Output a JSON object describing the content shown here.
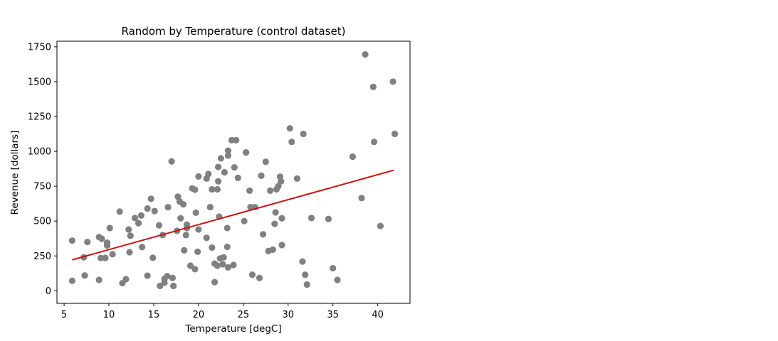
{
  "chart_data": {
    "type": "scatter",
    "title": "Random by Temperature (control dataset)",
    "xlabel": "Temperature [degC]",
    "ylabel": "Revenue [dollars]",
    "xlim": [
      4.2,
      43.6
    ],
    "ylim": [
      -90,
      1790
    ],
    "x_ticks": [
      5,
      10,
      15,
      20,
      25,
      30,
      35,
      40
    ],
    "y_ticks": [
      0,
      250,
      500,
      750,
      1000,
      1250,
      1500,
      1750
    ],
    "grid": false,
    "legend": "none",
    "colors": {
      "points": "#808080",
      "trend": "#cc1111"
    },
    "trend_line": {
      "x": [
        5.9,
        41.8
      ],
      "y": [
        222,
        865
      ]
    },
    "points": [
      {
        "x": 5.9,
        "y": 360
      },
      {
        "x": 5.9,
        "y": 72
      },
      {
        "x": 7.3,
        "y": 110
      },
      {
        "x": 7.2,
        "y": 240
      },
      {
        "x": 7.6,
        "y": 350
      },
      {
        "x": 8.9,
        "y": 385
      },
      {
        "x": 8.9,
        "y": 78
      },
      {
        "x": 9.1,
        "y": 235
      },
      {
        "x": 9.2,
        "y": 373
      },
      {
        "x": 9.6,
        "y": 236
      },
      {
        "x": 9.8,
        "y": 345
      },
      {
        "x": 9.8,
        "y": 325
      },
      {
        "x": 10.1,
        "y": 450
      },
      {
        "x": 10.4,
        "y": 262
      },
      {
        "x": 11.2,
        "y": 568
      },
      {
        "x": 11.5,
        "y": 55
      },
      {
        "x": 11.9,
        "y": 83
      },
      {
        "x": 12.2,
        "y": 440
      },
      {
        "x": 12.3,
        "y": 277
      },
      {
        "x": 12.4,
        "y": 395
      },
      {
        "x": 12.9,
        "y": 522
      },
      {
        "x": 13.3,
        "y": 485
      },
      {
        "x": 13.6,
        "y": 540
      },
      {
        "x": 13.7,
        "y": 313
      },
      {
        "x": 14.3,
        "y": 590
      },
      {
        "x": 14.3,
        "y": 108
      },
      {
        "x": 14.7,
        "y": 660
      },
      {
        "x": 14.9,
        "y": 237
      },
      {
        "x": 15.1,
        "y": 572
      },
      {
        "x": 15.6,
        "y": 470
      },
      {
        "x": 15.7,
        "y": 35
      },
      {
        "x": 16.0,
        "y": 400
      },
      {
        "x": 16.2,
        "y": 85
      },
      {
        "x": 16.2,
        "y": 58
      },
      {
        "x": 16.5,
        "y": 105
      },
      {
        "x": 16.6,
        "y": 600
      },
      {
        "x": 17.0,
        "y": 928
      },
      {
        "x": 17.1,
        "y": 92
      },
      {
        "x": 17.2,
        "y": 35
      },
      {
        "x": 17.6,
        "y": 430
      },
      {
        "x": 17.7,
        "y": 675
      },
      {
        "x": 17.9,
        "y": 640
      },
      {
        "x": 18.0,
        "y": 520
      },
      {
        "x": 18.3,
        "y": 620
      },
      {
        "x": 18.4,
        "y": 290
      },
      {
        "x": 18.6,
        "y": 400
      },
      {
        "x": 18.7,
        "y": 475
      },
      {
        "x": 18.7,
        "y": 450
      },
      {
        "x": 19.1,
        "y": 180
      },
      {
        "x": 19.3,
        "y": 735
      },
      {
        "x": 19.6,
        "y": 725
      },
      {
        "x": 19.6,
        "y": 155
      },
      {
        "x": 19.7,
        "y": 560
      },
      {
        "x": 19.9,
        "y": 280
      },
      {
        "x": 20.0,
        "y": 820
      },
      {
        "x": 20.0,
        "y": 440
      },
      {
        "x": 20.9,
        "y": 805
      },
      {
        "x": 20.9,
        "y": 380
      },
      {
        "x": 21.1,
        "y": 838
      },
      {
        "x": 21.3,
        "y": 600
      },
      {
        "x": 21.5,
        "y": 310
      },
      {
        "x": 21.5,
        "y": 728
      },
      {
        "x": 21.8,
        "y": 195
      },
      {
        "x": 21.8,
        "y": 62
      },
      {
        "x": 22.1,
        "y": 728
      },
      {
        "x": 22.1,
        "y": 180
      },
      {
        "x": 22.2,
        "y": 785
      },
      {
        "x": 22.2,
        "y": 888
      },
      {
        "x": 22.3,
        "y": 532
      },
      {
        "x": 22.4,
        "y": 232
      },
      {
        "x": 22.5,
        "y": 950
      },
      {
        "x": 22.7,
        "y": 190
      },
      {
        "x": 22.8,
        "y": 240
      },
      {
        "x": 22.9,
        "y": 850
      },
      {
        "x": 23.2,
        "y": 450
      },
      {
        "x": 23.2,
        "y": 315
      },
      {
        "x": 23.3,
        "y": 168
      },
      {
        "x": 23.3,
        "y": 1005
      },
      {
        "x": 23.3,
        "y": 970
      },
      {
        "x": 23.7,
        "y": 1080
      },
      {
        "x": 23.9,
        "y": 185
      },
      {
        "x": 24.0,
        "y": 885
      },
      {
        "x": 24.2,
        "y": 1080
      },
      {
        "x": 24.4,
        "y": 810
      },
      {
        "x": 25.1,
        "y": 500
      },
      {
        "x": 25.3,
        "y": 992
      },
      {
        "x": 25.7,
        "y": 718
      },
      {
        "x": 25.8,
        "y": 600
      },
      {
        "x": 26.0,
        "y": 115
      },
      {
        "x": 26.3,
        "y": 600
      },
      {
        "x": 26.8,
        "y": 92
      },
      {
        "x": 27.0,
        "y": 825
      },
      {
        "x": 27.2,
        "y": 405
      },
      {
        "x": 27.5,
        "y": 925
      },
      {
        "x": 27.8,
        "y": 285
      },
      {
        "x": 28.0,
        "y": 718
      },
      {
        "x": 28.3,
        "y": 295
      },
      {
        "x": 28.5,
        "y": 480
      },
      {
        "x": 28.6,
        "y": 562
      },
      {
        "x": 28.7,
        "y": 728
      },
      {
        "x": 28.9,
        "y": 750
      },
      {
        "x": 29.1,
        "y": 818
      },
      {
        "x": 29.3,
        "y": 520
      },
      {
        "x": 29.3,
        "y": 328
      },
      {
        "x": 29.2,
        "y": 785
      },
      {
        "x": 30.2,
        "y": 1165
      },
      {
        "x": 30.4,
        "y": 1068
      },
      {
        "x": 31.0,
        "y": 805
      },
      {
        "x": 31.6,
        "y": 210
      },
      {
        "x": 31.7,
        "y": 1125
      },
      {
        "x": 31.9,
        "y": 115
      },
      {
        "x": 32.1,
        "y": 45
      },
      {
        "x": 32.6,
        "y": 522
      },
      {
        "x": 34.5,
        "y": 515
      },
      {
        "x": 35.0,
        "y": 162
      },
      {
        "x": 35.5,
        "y": 78
      },
      {
        "x": 37.2,
        "y": 962
      },
      {
        "x": 38.2,
        "y": 665
      },
      {
        "x": 38.6,
        "y": 1695
      },
      {
        "x": 39.5,
        "y": 1462
      },
      {
        "x": 39.6,
        "y": 1068
      },
      {
        "x": 40.3,
        "y": 465
      },
      {
        "x": 41.7,
        "y": 1500
      },
      {
        "x": 41.9,
        "y": 1125
      }
    ]
  }
}
